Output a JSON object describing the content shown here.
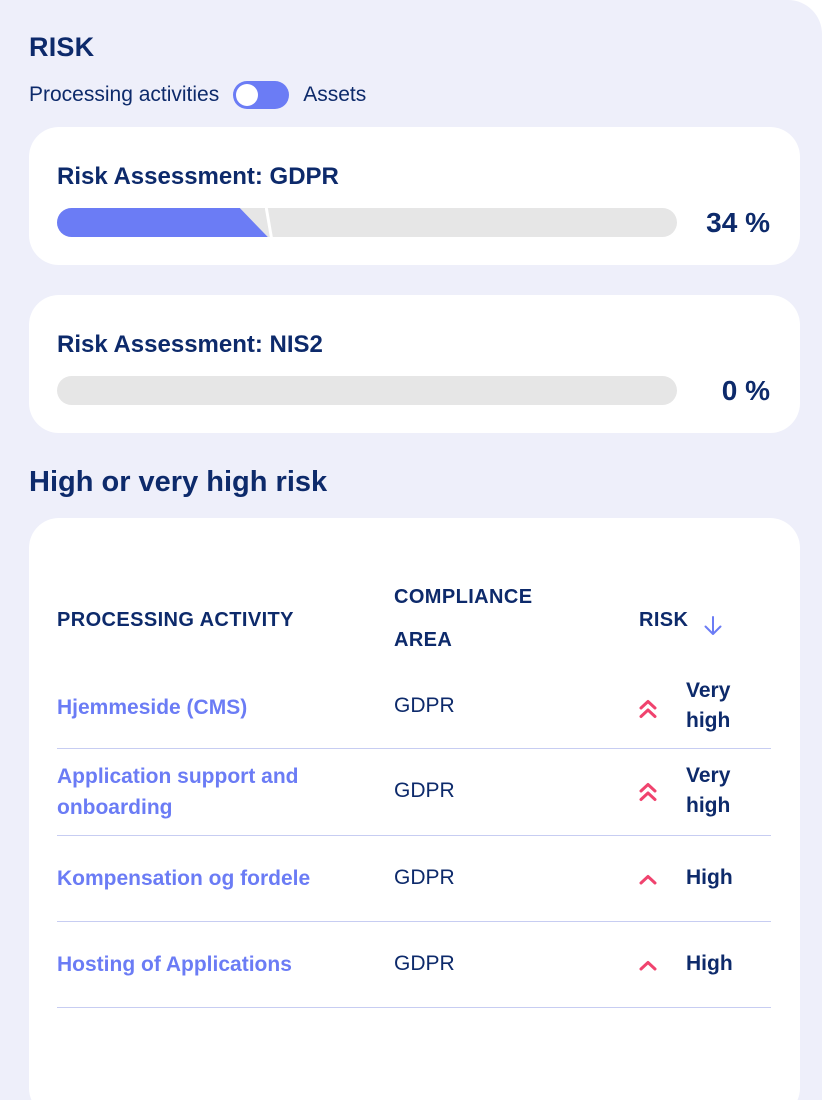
{
  "header": {
    "title": "RISK",
    "toggle": {
      "left_label": "Processing activities",
      "right_label": "Assets",
      "selected": "Processing activities"
    }
  },
  "assessments": [
    {
      "title": "Risk Assessment: GDPR",
      "percent_label": "34 %",
      "progress": 34
    },
    {
      "title": "Risk Assessment: NIS2",
      "percent_label": "0 %",
      "progress": 0
    }
  ],
  "high_risk": {
    "title": "High or very high risk",
    "columns": {
      "activity": "PROCESSING ACTIVITY",
      "area": "COMPLIANCE AREA",
      "risk": "RISK"
    },
    "sort": {
      "column": "RISK",
      "direction": "descending",
      "icon": "arrow-down-icon"
    },
    "rows": [
      {
        "activity": "Hjemmeside (CMS)",
        "area": "GDPR",
        "risk": "Very high",
        "icon": "double-chevron-up-icon"
      },
      {
        "activity": "Application support and onboarding",
        "area": "GDPR",
        "risk": "Very high",
        "icon": "double-chevron-up-icon"
      },
      {
        "activity": "Kompensation og fordele",
        "area": "GDPR",
        "risk": "High",
        "icon": "chevron-up-icon"
      },
      {
        "activity": "Hosting of Applications",
        "area": "GDPR",
        "risk": "High",
        "icon": "chevron-up-icon"
      }
    ]
  },
  "colors": {
    "accent": "#6b7cf5",
    "text": "#0d2a6b",
    "risk_icon": "#f0436e",
    "track": "#e6e6e6",
    "background": "#eeeffa"
  }
}
